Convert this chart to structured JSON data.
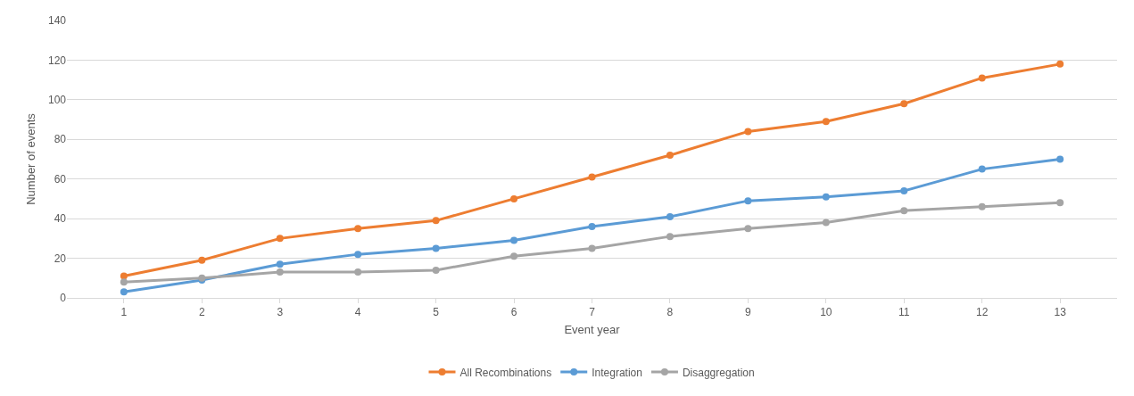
{
  "chart_data": {
    "type": "line",
    "xlabel": "Event year",
    "ylabel": "Number of events",
    "categories": [
      "1",
      "2",
      "3",
      "4",
      "5",
      "6",
      "7",
      "8",
      "9",
      "10",
      "11",
      "12",
      "13"
    ],
    "series": [
      {
        "name": "All Recombinations",
        "color": "#ed7d31",
        "values": [
          11,
          19,
          30,
          35,
          39,
          50,
          61,
          72,
          84,
          89,
          98,
          111,
          118
        ]
      },
      {
        "name": "Integration",
        "color": "#5b9bd5",
        "values": [
          3,
          9,
          17,
          22,
          25,
          29,
          36,
          41,
          49,
          51,
          54,
          65,
          70
        ]
      },
      {
        "name": "Disaggregation",
        "color": "#a5a5a5",
        "values": [
          8,
          10,
          13,
          13,
          14,
          21,
          25,
          31,
          35,
          38,
          44,
          46,
          48
        ]
      }
    ],
    "ylim": [
      0,
      140
    ],
    "yticks": [
      0,
      20,
      40,
      60,
      80,
      100,
      120,
      140
    ],
    "grid": "y",
    "legend": "bottom",
    "marker": "circle",
    "line_style": "solid"
  }
}
